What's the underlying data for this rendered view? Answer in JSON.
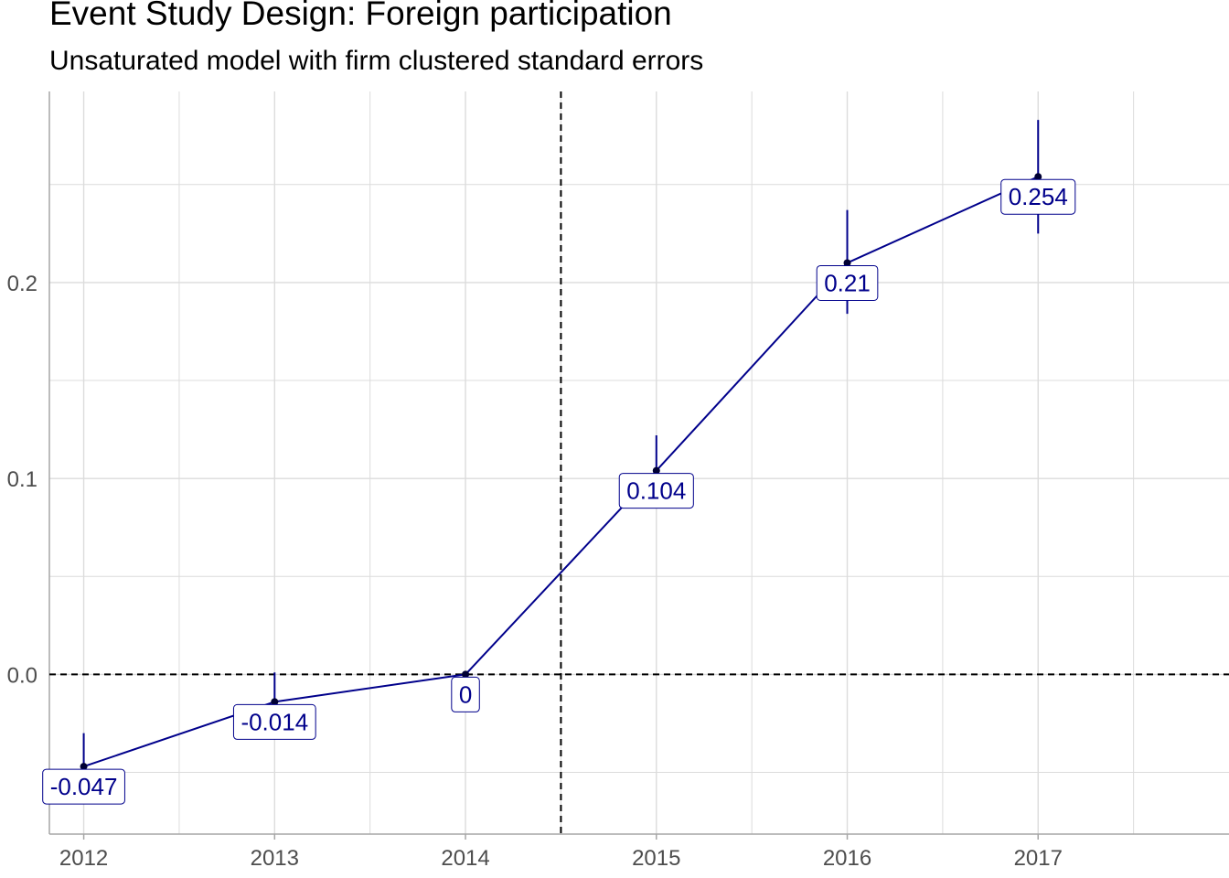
{
  "chart_data": {
    "type": "line",
    "title": "Event Study Design: Foreign participation",
    "subtitle": "Unsaturated model with firm clustered standard errors",
    "xlabel": "",
    "ylabel": "",
    "x": [
      2012,
      2013,
      2014,
      2015,
      2016,
      2017
    ],
    "series": [
      {
        "values": [
          -0.047,
          -0.014,
          0,
          0.104,
          0.21,
          0.254
        ],
        "ci_low": [
          -0.065,
          -0.027,
          0,
          0.087,
          0.184,
          0.225
        ],
        "ci_high": [
          -0.03,
          0.001,
          0,
          0.122,
          0.237,
          0.283
        ],
        "labels": [
          "-0.047",
          "-0.014",
          "0",
          "0.104",
          "0.21",
          "0.254"
        ]
      }
    ],
    "xlim": [
      2011.82,
      2018.0
    ],
    "ylim": [
      -0.0815,
      0.2975
    ],
    "x_ticks": [
      {
        "value": 2012,
        "label": "2012"
      },
      {
        "value": 2013,
        "label": "2013"
      },
      {
        "value": 2014,
        "label": "2014"
      },
      {
        "value": 2015,
        "label": "2015"
      },
      {
        "value": 2016,
        "label": "2016"
      },
      {
        "value": 2017,
        "label": "2017"
      }
    ],
    "y_ticks": [
      {
        "value": 0.0,
        "label": "0.0"
      },
      {
        "value": 0.1,
        "label": "0.1"
      },
      {
        "value": 0.2,
        "label": "0.2"
      }
    ],
    "y_minor_ticks": [
      -0.05,
      0.05,
      0.15,
      0.25
    ],
    "x_minor_ticks": [
      2012.5,
      2013.5,
      2014.5,
      2015.5,
      2016.5,
      2017.5
    ],
    "reference_lines": {
      "vertical_x": 2014.5,
      "horizontal_y": 0
    },
    "grid": true,
    "legend": "none",
    "colors": {
      "series": "#00008B",
      "point": "#000033",
      "reference": "#000000",
      "grid": "#dcdcdc",
      "axis": "#a6a6a6"
    }
  }
}
